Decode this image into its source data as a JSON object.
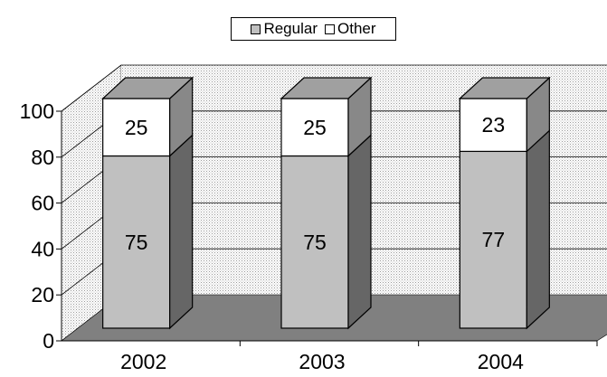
{
  "chart_data": {
    "type": "bar",
    "stacked": true,
    "three_d": true,
    "categories": [
      "2002",
      "2003",
      "2004"
    ],
    "series": [
      {
        "name": "Regular",
        "values": [
          75,
          75,
          77
        ],
        "color": "#c0c0c0"
      },
      {
        "name": "Other",
        "values": [
          25,
          25,
          23
        ],
        "color": "#ffffff"
      }
    ],
    "data_labels": [
      [
        "75",
        "75",
        "77"
      ],
      [
        "25",
        "25",
        "23"
      ]
    ],
    "ylim": [
      0,
      100
    ],
    "yticks": [
      "0",
      "20",
      "40",
      "60",
      "80",
      "100"
    ],
    "gridlines": true,
    "legend_position": "top",
    "title": "",
    "xlabel": "",
    "ylabel": "",
    "colors": {
      "floor": "#808080",
      "bar_side": "#666666",
      "wall": "#d9d9d9"
    }
  }
}
